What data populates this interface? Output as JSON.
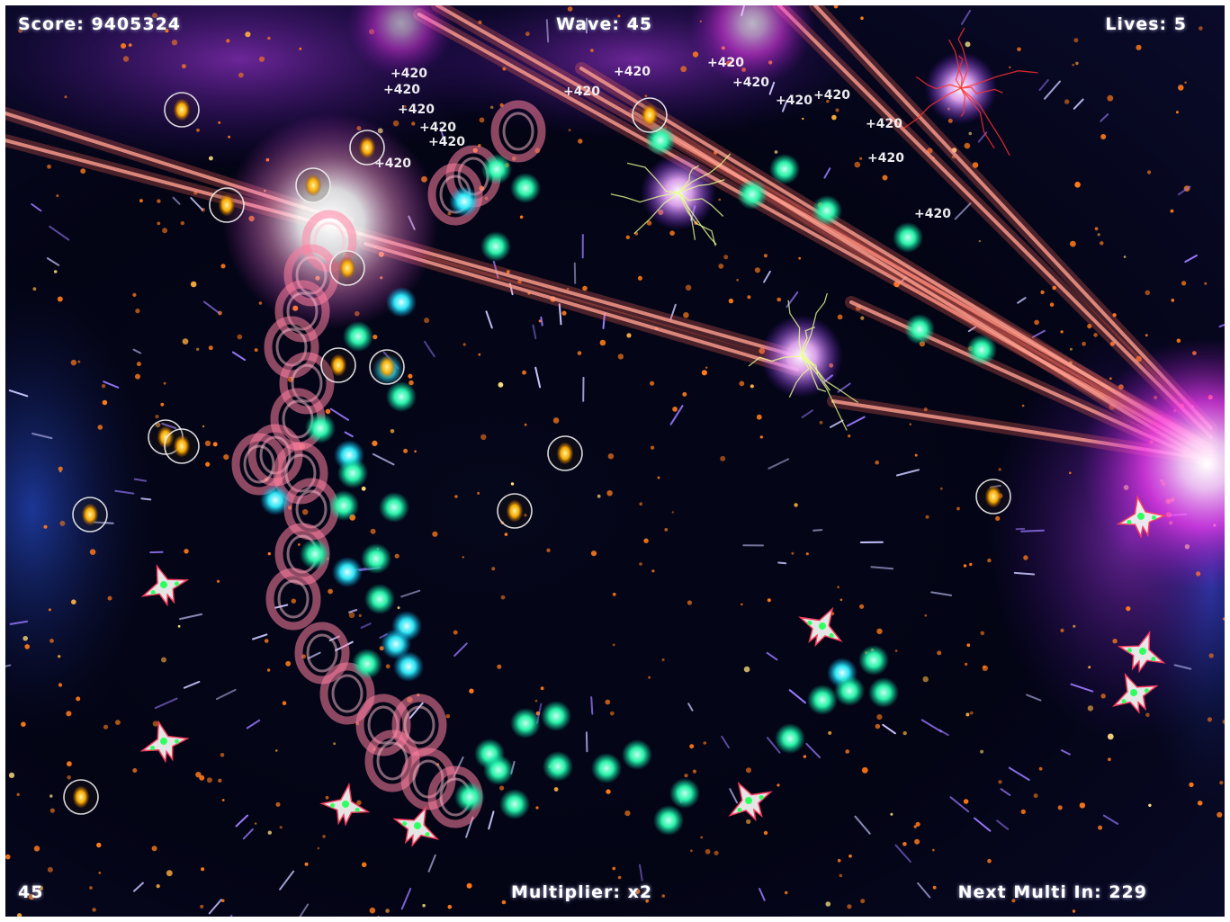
{
  "hud": {
    "score_label": "Score:",
    "score_value": "9405324",
    "wave_label": "Wave:",
    "wave_value": "45",
    "lives_label": "Lives:",
    "lives_value": "5",
    "fps_value": "45",
    "multiplier_label": "Multiplier:",
    "multiplier_value": "x2",
    "next_multi_label": "Next Multi In:",
    "next_multi_value": "229"
  },
  "popups": [
    "+420",
    "+420",
    "+420",
    "+420",
    "+420",
    "+420",
    "+420",
    "+420",
    "+420",
    "+420",
    "+420",
    "+420",
    "+420",
    "+420",
    "+420"
  ],
  "colors": {
    "background": "#030414",
    "laser": "#ff6a5a",
    "explosion": "#ff40ff",
    "enemy_orb": "#2bffb0",
    "pickup": "#ffc400",
    "hud_text": "#ffffff"
  }
}
